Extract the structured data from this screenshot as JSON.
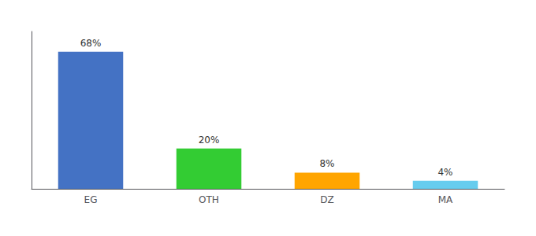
{
  "chart_data": {
    "type": "bar",
    "categories": [
      "EG",
      "OTH",
      "DZ",
      "MA"
    ],
    "values": [
      68,
      20,
      8,
      4
    ],
    "value_labels": [
      "68%",
      "20%",
      "8%",
      "4%"
    ],
    "colors": [
      "#4472C4",
      "#33CC33",
      "#FFA500",
      "#66CCEE"
    ],
    "ylim": [
      0,
      78
    ],
    "grid": false,
    "data_labels": true,
    "tick_labels": "x"
  }
}
